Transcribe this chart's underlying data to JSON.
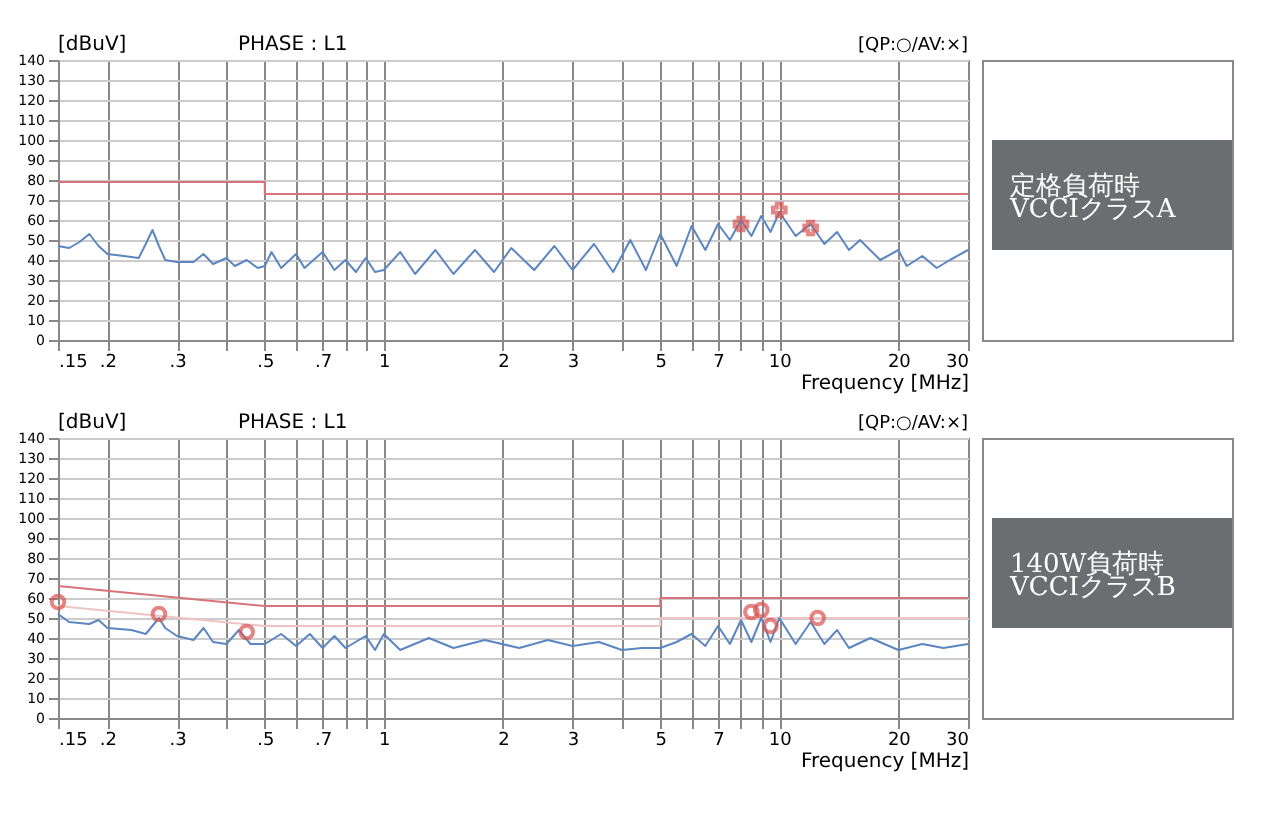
{
  "chart_data": [
    {
      "type": "line",
      "title": "PHASE : L1",
      "ylabel": "[dBuV]",
      "xlabel": "Frequency [MHz]",
      "log": "x",
      "grid": true,
      "annotations": [
        "[QP:○/AV:×]",
        "定格負荷時\nVCCIクラスA"
      ],
      "xlim": [
        0.15,
        30
      ],
      "ylim": [
        0,
        140
      ],
      "xticks": [
        {
          "value": 0.15,
          "label": ".15"
        },
        {
          "value": 0.2,
          "label": ".2"
        },
        {
          "value": 0.3,
          "label": ".3"
        },
        {
          "value": 0.4,
          "label": null
        },
        {
          "value": 0.5,
          "label": ".5"
        },
        {
          "value": 0.6,
          "label": null
        },
        {
          "value": 0.7,
          "label": ".7"
        },
        {
          "value": 0.8,
          "label": null
        },
        {
          "value": 0.9,
          "label": null
        },
        1,
        2,
        3,
        {
          "value": 4,
          "label": null
        },
        5,
        {
          "value": 6,
          "label": null
        },
        7,
        {
          "value": 8,
          "label": null
        },
        {
          "value": 9,
          "label": null
        },
        10,
        20,
        30
      ],
      "yticks": [
        0,
        10,
        20,
        30,
        40,
        50,
        60,
        70,
        80,
        90,
        100,
        110,
        120,
        130,
        140
      ],
      "series": [
        {
          "color": "#d9737a",
          "x": [
            0.15,
            0.5,
            0.5,
            30
          ],
          "values": [
            79,
            79,
            73,
            73
          ]
        },
        {
          "color": "#5b86c2",
          "x": [
            0.15,
            0.16,
            0.17,
            0.18,
            0.19,
            0.2,
            0.22,
            0.24,
            0.25,
            0.26,
            0.27,
            0.28,
            0.3,
            0.33,
            0.35,
            0.37,
            0.4,
            0.42,
            0.45,
            0.48,
            0.5,
            0.52,
            0.55,
            0.6,
            0.63,
            0.7,
            0.75,
            0.8,
            0.85,
            0.9,
            0.95,
            1.0,
            1.1,
            1.2,
            1.35,
            1.5,
            1.7,
            1.9,
            2.1,
            2.4,
            2.7,
            3.0,
            3.4,
            3.8,
            4.2,
            4.6,
            5.0,
            5.5,
            6,
            6.5,
            7,
            7.5,
            8,
            8.5,
            9,
            9.5,
            10,
            11,
            12,
            13,
            14,
            15,
            16,
            18,
            20,
            21,
            23,
            25,
            27,
            30
          ],
          "values": [
            47,
            46,
            49,
            53,
            47,
            43,
            42,
            41,
            48,
            55,
            47,
            40,
            39,
            39,
            43,
            38,
            41,
            37,
            40,
            36,
            37,
            44,
            36,
            43,
            36,
            44,
            35,
            40,
            34,
            41,
            34,
            35,
            44,
            33,
            45,
            33,
            45,
            34,
            46,
            35,
            47,
            35,
            48,
            34,
            50,
            35,
            53,
            37,
            57,
            45,
            58,
            50,
            60,
            52,
            62,
            54,
            64,
            52,
            58,
            48,
            54,
            45,
            50,
            40,
            45,
            37,
            42,
            36,
            40,
            45
          ]
        },
        {
          "type": "scatter",
          "marker": "cross",
          "color": "#d9534f",
          "x": [
            8,
            10,
            12
          ],
          "values": [
            58,
            65,
            56
          ]
        }
      ]
    },
    {
      "type": "line",
      "title": "PHASE : L1",
      "ylabel": "[dBuV]",
      "xlabel": "Frequency [MHz]",
      "log": "x",
      "grid": true,
      "annotations": [
        "[QP:○/AV:×]",
        "140W負荷時\nVCCIクラスB"
      ],
      "xlim": [
        0.15,
        30
      ],
      "ylim": [
        0,
        140
      ],
      "xticks": [
        {
          "value": 0.15,
          "label": ".15"
        },
        {
          "value": 0.2,
          "label": ".2"
        },
        {
          "value": 0.3,
          "label": ".3"
        },
        {
          "value": 0.4,
          "label": null
        },
        {
          "value": 0.5,
          "label": ".5"
        },
        {
          "value": 0.6,
          "label": null
        },
        {
          "value": 0.7,
          "label": ".7"
        },
        {
          "value": 0.8,
          "label": null
        },
        {
          "value": 0.9,
          "label": null
        },
        1,
        2,
        3,
        {
          "value": 4,
          "label": null
        },
        5,
        {
          "value": 6,
          "label": null
        },
        7,
        {
          "value": 8,
          "label": null
        },
        {
          "value": 9,
          "label": null
        },
        10,
        20,
        30
      ],
      "yticks": [
        0,
        10,
        20,
        30,
        40,
        50,
        60,
        70,
        80,
        90,
        100,
        110,
        120,
        130,
        140
      ],
      "series": [
        {
          "color": "#d9737a",
          "x": [
            0.15,
            0.5,
            5,
            5,
            30
          ],
          "values": [
            66,
            56,
            56,
            60,
            60
          ]
        },
        {
          "color": "#f0c4c6",
          "x": [
            0.15,
            0.5,
            5,
            5,
            30
          ],
          "values": [
            56,
            46,
            46,
            50,
            50
          ]
        },
        {
          "color": "#5b86c2",
          "x": [
            0.15,
            0.16,
            0.18,
            0.19,
            0.2,
            0.23,
            0.25,
            0.27,
            0.28,
            0.3,
            0.33,
            0.35,
            0.37,
            0.4,
            0.43,
            0.46,
            0.5,
            0.55,
            0.6,
            0.65,
            0.7,
            0.75,
            0.8,
            0.9,
            0.95,
            1,
            1.1,
            1.3,
            1.5,
            1.8,
            2.2,
            2.6,
            3,
            3.5,
            4,
            4.5,
            5,
            5.5,
            6,
            6.5,
            7,
            7.5,
            8,
            8.5,
            9,
            9.5,
            10,
            11,
            12,
            13,
            14,
            15,
            17,
            20,
            23,
            26,
            30
          ],
          "values": [
            52,
            48,
            47,
            49,
            45,
            44,
            42,
            50,
            45,
            41,
            39,
            45,
            38,
            37,
            44,
            37,
            37,
            42,
            36,
            42,
            35,
            41,
            35,
            41,
            34,
            42,
            34,
            40,
            35,
            39,
            35,
            39,
            36,
            38,
            34,
            35,
            35,
            38,
            42,
            36,
            46,
            37,
            49,
            38,
            50,
            38,
            50,
            37,
            48,
            37,
            44,
            35,
            40,
            34,
            37,
            35,
            37
          ]
        },
        {
          "type": "scatter",
          "marker": "circle",
          "color": "#d9534f",
          "x": [
            0.15,
            0.27,
            0.45,
            8.5,
            9,
            9.5,
            12.5
          ],
          "values": [
            58,
            52,
            43,
            53,
            54,
            46,
            50
          ]
        }
      ]
    }
  ]
}
